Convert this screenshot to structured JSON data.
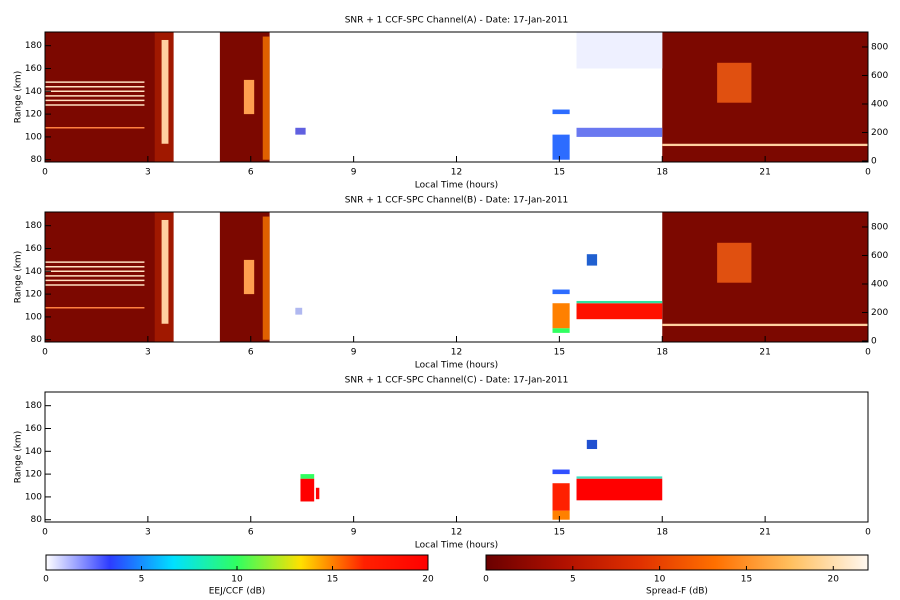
{
  "chart_data": [
    {
      "type": "heatmap",
      "title": "SNR + 1 CCF-SPC Channel(A) - Date: 17-Jan-2011",
      "xlabel": "Local Time (hours)",
      "ylabel": "Range (km)",
      "xlim": [
        0,
        24
      ],
      "xticks": [
        0,
        3,
        6,
        9,
        12,
        15,
        18,
        21,
        {
          "value": 24,
          "label": "0"
        }
      ],
      "ylim": [
        78,
        192
      ],
      "yticks": [
        80,
        100,
        120,
        140,
        160,
        180
      ],
      "y2lim": [
        -7,
        905
      ],
      "y2ticks": [
        0,
        200,
        400,
        600,
        800
      ]
    },
    {
      "type": "heatmap",
      "title": "SNR + 1 CCF-SPC Channel(B) - Date: 17-Jan-2011",
      "xlabel": "Local Time (hours)",
      "ylabel": "Range (km)",
      "xlim": [
        0,
        24
      ],
      "xticks": [
        0,
        3,
        6,
        9,
        12,
        15,
        18,
        21,
        {
          "value": 24,
          "label": "0"
        }
      ],
      "ylim": [
        78,
        192
      ],
      "yticks": [
        80,
        100,
        120,
        140,
        160,
        180
      ],
      "y2lim": [
        -7,
        905
      ],
      "y2ticks": [
        0,
        200,
        400,
        600,
        800
      ]
    },
    {
      "type": "heatmap",
      "title": "SNR + 1 CCF-SPC Channel(C) - Date: 17-Jan-2011",
      "xlabel": "Local Time (hours)",
      "ylabel": "Range (km)",
      "xlim": [
        0,
        24
      ],
      "xticks": [
        0,
        3,
        6,
        9,
        12,
        15,
        18,
        21,
        {
          "value": 24,
          "label": "0"
        }
      ],
      "ylim": [
        78,
        192
      ],
      "yticks": [
        80,
        100,
        120,
        140,
        160,
        180
      ]
    }
  ],
  "colorbars": [
    {
      "label": "EEJ/CCF (dB)",
      "lim": [
        0,
        20
      ],
      "ticks": [
        0,
        5,
        10,
        15,
        20
      ],
      "colors": [
        "#ffffff",
        "#2d3cff",
        "#00e0ff",
        "#30ff60",
        "#ffe000",
        "#ff2000",
        "#ff0000"
      ]
    },
    {
      "label": "Spread-F (dB)",
      "lim": [
        0,
        22
      ],
      "ticks": [
        0,
        5,
        10,
        15,
        20
      ],
      "colors": [
        "#6a0000",
        "#b01000",
        "#e03000",
        "#ff7000",
        "#ffc060",
        "#fff8f0"
      ]
    }
  ]
}
